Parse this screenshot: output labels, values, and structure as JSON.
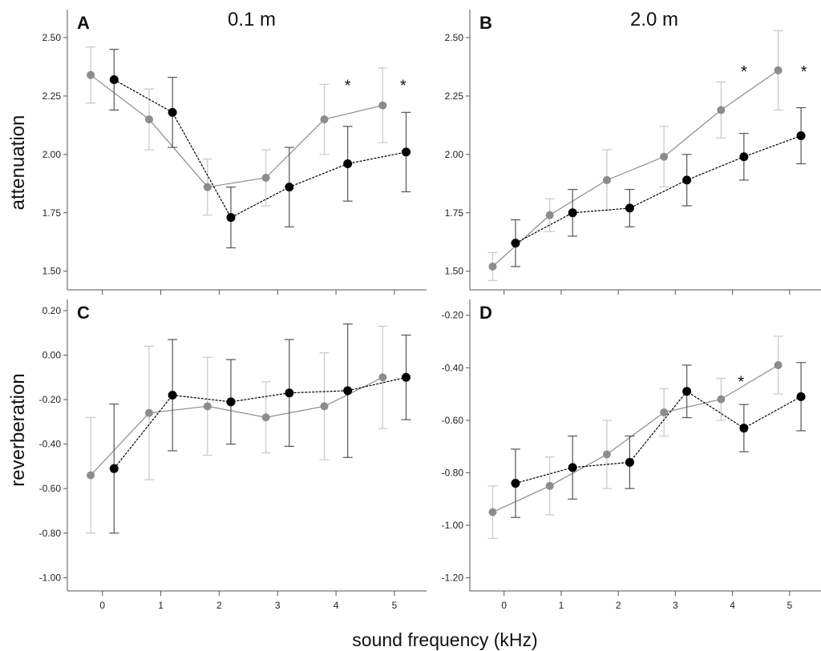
{
  "figure": {
    "ylabel_top": "attenuation",
    "ylabel_bottom": "reverberation",
    "xlabel": "sound frequency (kHz)",
    "col_titles": [
      "0.1 m",
      "2.0 m"
    ]
  },
  "colors": {
    "series_gray": "#8c8c8c",
    "series_black": "#000000",
    "errbar_gray": "#c8c8c8",
    "errbar_black": "#555555",
    "axis": "#555555"
  },
  "chart_data": [
    {
      "panel": "A",
      "type": "line",
      "title": "0.1 m",
      "ylabel": "attenuation",
      "xlabel": "",
      "xlim": [
        -0.6,
        5.55
      ],
      "ylim": [
        1.42,
        2.62
      ],
      "xticks": [
        0,
        1,
        2,
        3,
        4,
        5
      ],
      "xticklabels": [],
      "yticks": [
        1.5,
        1.75,
        2.0,
        2.25,
        2.5
      ],
      "yticklabels": [
        "1.50",
        "1.75",
        "2.00",
        "2.25",
        "2.50"
      ],
      "series": [
        {
          "x": [
            -0.2,
            0.8,
            1.8,
            2.8,
            3.8,
            4.8
          ],
          "y": [
            2.34,
            2.15,
            1.86,
            1.9,
            2.15,
            2.21
          ],
          "err": [
            0.12,
            0.13,
            0.12,
            0.12,
            0.15,
            0.16
          ]
        },
        {
          "x": [
            0.2,
            1.2,
            2.2,
            3.2,
            4.2,
            5.2
          ],
          "y": [
            2.32,
            2.18,
            1.73,
            1.86,
            1.96,
            2.01
          ],
          "err": [
            0.13,
            0.15,
            0.13,
            0.17,
            0.16,
            0.17
          ]
        }
      ],
      "annotations": [
        {
          "text": "*",
          "x": 4.2,
          "y": 2.3
        },
        {
          "text": "*",
          "x": 5.15,
          "y": 2.3
        }
      ]
    },
    {
      "panel": "B",
      "type": "line",
      "title": "2.0 m",
      "ylabel": "",
      "xlabel": "",
      "xlim": [
        -0.6,
        5.55
      ],
      "ylim": [
        1.42,
        2.62
      ],
      "xticks": [
        0,
        1,
        2,
        3,
        4,
        5
      ],
      "xticklabels": [],
      "yticks": [
        1.5,
        1.75,
        2.0,
        2.25,
        2.5
      ],
      "yticklabels": [
        "1.50",
        "1.75",
        "2.00",
        "2.25",
        "2.50"
      ],
      "series": [
        {
          "x": [
            -0.2,
            0.8,
            1.8,
            2.8,
            3.8,
            4.8
          ],
          "y": [
            1.52,
            1.74,
            1.89,
            1.99,
            2.19,
            2.36
          ],
          "err": [
            0.06,
            0.07,
            0.13,
            0.13,
            0.12,
            0.17
          ]
        },
        {
          "x": [
            0.2,
            1.2,
            2.2,
            3.2,
            4.2,
            5.2
          ],
          "y": [
            1.62,
            1.75,
            1.77,
            1.89,
            1.99,
            2.08
          ],
          "err": [
            0.1,
            0.1,
            0.08,
            0.11,
            0.1,
            0.12
          ]
        }
      ],
      "annotations": [
        {
          "text": "*",
          "x": 4.2,
          "y": 2.36
        },
        {
          "text": "*",
          "x": 5.25,
          "y": 2.36
        }
      ]
    },
    {
      "panel": "C",
      "type": "line",
      "title": "",
      "ylabel": "reverberation",
      "xlabel": "",
      "xlim": [
        -0.6,
        5.55
      ],
      "ylim": [
        -1.06,
        0.25
      ],
      "xticks": [
        0,
        1,
        2,
        3,
        4,
        5
      ],
      "xticklabels": [
        "0",
        "1",
        "2",
        "3",
        "4",
        "5"
      ],
      "yticks": [
        -1.0,
        -0.8,
        -0.6,
        -0.4,
        -0.2,
        0.0,
        0.2
      ],
      "yticklabels": [
        "-1.00",
        "-0.80",
        "-0.60",
        "-0.40",
        "-0.20",
        "0.00",
        "0.20"
      ],
      "series": [
        {
          "x": [
            -0.2,
            0.8,
            1.8,
            2.8,
            3.8,
            4.8
          ],
          "y": [
            -0.54,
            -0.26,
            -0.23,
            -0.28,
            -0.23,
            -0.1
          ],
          "err": [
            0.26,
            0.3,
            0.22,
            0.16,
            0.24,
            0.23
          ]
        },
        {
          "x": [
            0.2,
            1.2,
            2.2,
            3.2,
            4.2,
            5.2
          ],
          "y": [
            -0.51,
            -0.18,
            -0.21,
            -0.17,
            -0.16,
            -0.1
          ],
          "err": [
            0.29,
            0.25,
            0.19,
            0.24,
            0.3,
            0.19
          ]
        }
      ],
      "annotations": []
    },
    {
      "panel": "D",
      "type": "line",
      "title": "",
      "ylabel": "",
      "xlabel": "",
      "xlim": [
        -0.6,
        5.55
      ],
      "ylim": [
        -1.25,
        -0.14
      ],
      "xticks": [
        0,
        1,
        2,
        3,
        4,
        5
      ],
      "xticklabels": [
        "0",
        "1",
        "2",
        "3",
        "4",
        "5"
      ],
      "yticks": [
        -1.2,
        -1.0,
        -0.8,
        -0.6,
        -0.4,
        -0.2
      ],
      "yticklabels": [
        "-1.20",
        "-1.00",
        "-0.80",
        "-0.60",
        "-0.40",
        "-0.20"
      ],
      "series": [
        {
          "x": [
            -0.2,
            0.8,
            1.8,
            2.8,
            3.8,
            4.8
          ],
          "y": [
            -0.95,
            -0.85,
            -0.73,
            -0.57,
            -0.52,
            -0.39
          ],
          "err": [
            0.1,
            0.11,
            0.13,
            0.09,
            0.08,
            0.11
          ]
        },
        {
          "x": [
            0.2,
            1.2,
            2.2,
            3.2,
            4.2,
            5.2
          ],
          "y": [
            -0.84,
            -0.78,
            -0.76,
            -0.49,
            -0.63,
            -0.51
          ],
          "err": [
            0.13,
            0.12,
            0.1,
            0.1,
            0.09,
            0.13
          ]
        }
      ],
      "annotations": [
        {
          "text": "*",
          "x": 4.15,
          "y": -0.45
        }
      ]
    }
  ]
}
